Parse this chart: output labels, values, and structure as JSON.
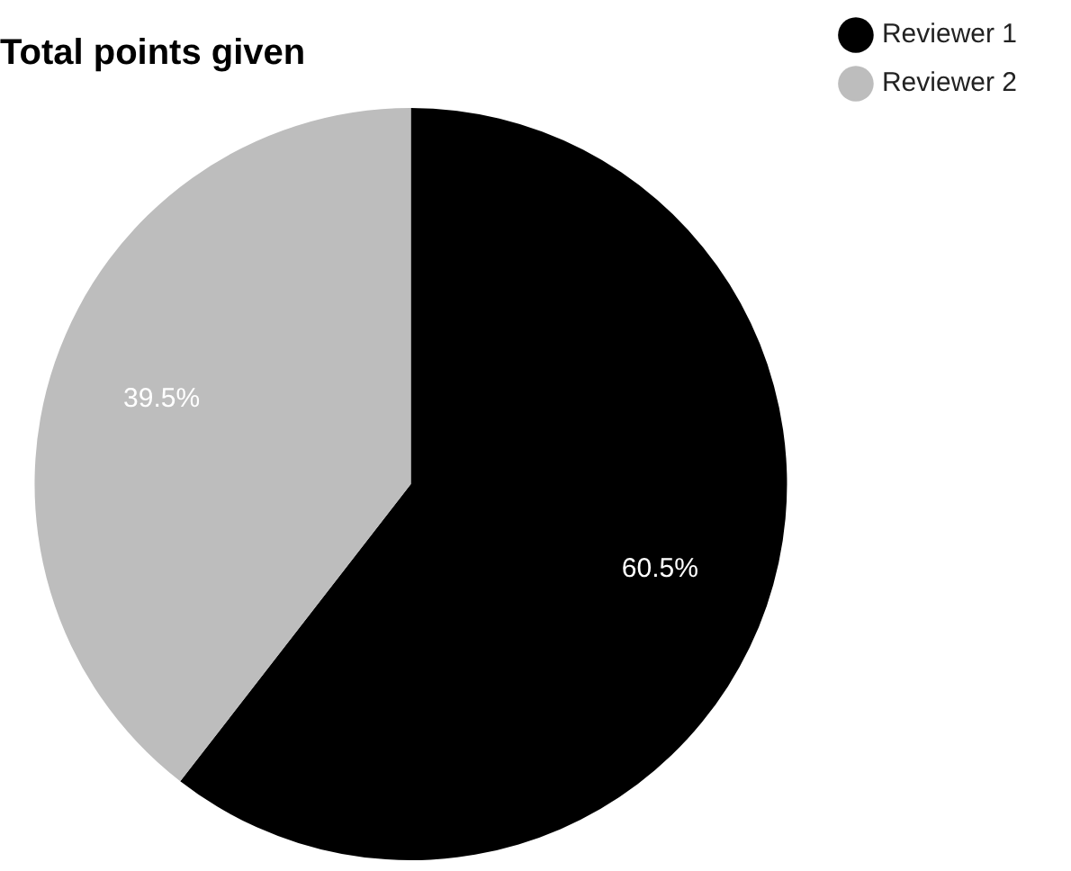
{
  "chart_data": {
    "type": "pie",
    "title": "Total points given",
    "categories": [
      "Reviewer 1",
      "Reviewer 2"
    ],
    "values": [
      60.5,
      39.5
    ],
    "colors": [
      "#000000",
      "#bdbdbd"
    ],
    "value_labels": [
      "60.5%",
      "39.5%"
    ],
    "legend": "top right"
  }
}
